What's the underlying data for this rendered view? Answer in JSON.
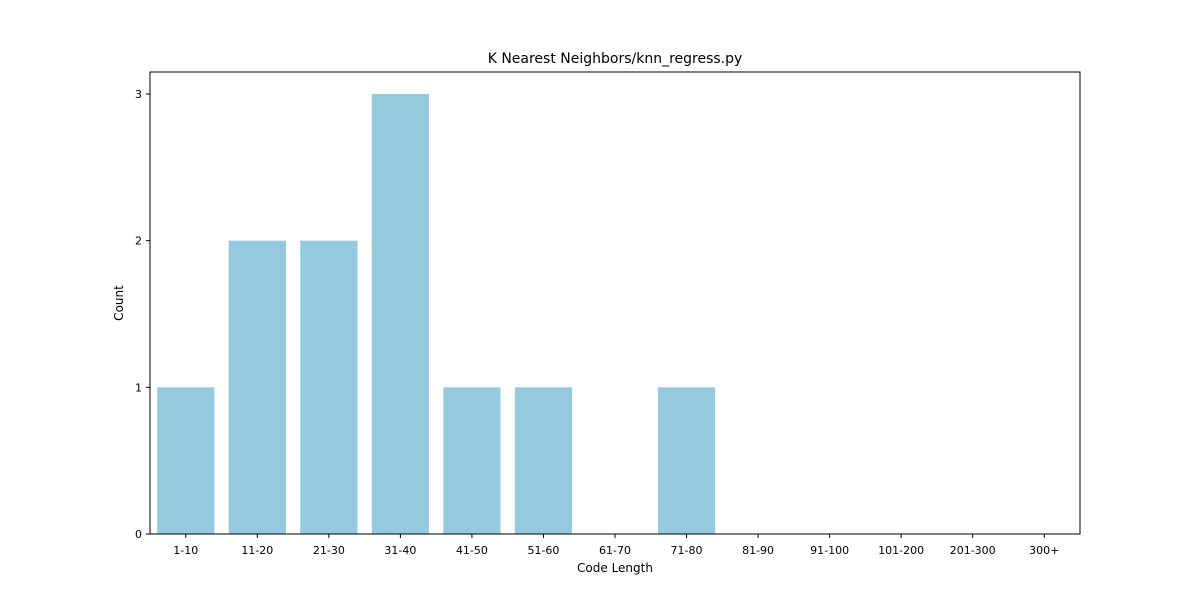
{
  "chart_data": {
    "type": "bar",
    "title": "K Nearest Neighbors/knn_regress.py",
    "xlabel": "Code Length",
    "ylabel": "Count",
    "categories": [
      "1-10",
      "11-20",
      "21-30",
      "31-40",
      "41-50",
      "51-60",
      "61-70",
      "71-80",
      "81-90",
      "91-100",
      "101-200",
      "201-300",
      "300+"
    ],
    "values": [
      1,
      2,
      2,
      3,
      1,
      1,
      0,
      1,
      0,
      0,
      0,
      0,
      0
    ],
    "ylim": [
      0,
      3.15
    ],
    "yticks": [
      "0",
      "1",
      "2",
      "3"
    ],
    "bar_color": "#95c9df",
    "grid": false,
    "legend": "none"
  }
}
